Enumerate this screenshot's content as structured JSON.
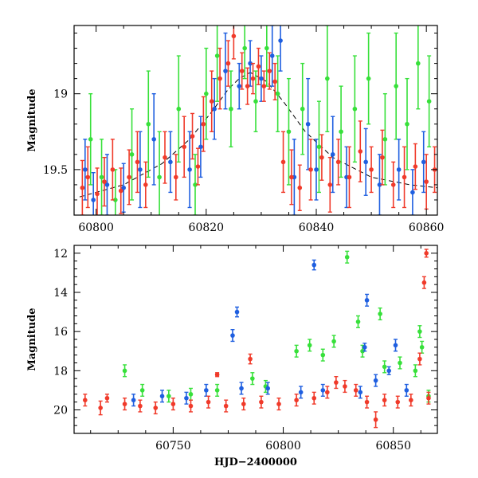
{
  "chart_data": [
    {
      "type": "scatter",
      "title": "",
      "xlabel": "",
      "ylabel": "Magnitude",
      "xlim": [
        60796,
        60862
      ],
      "ylim": [
        19.8,
        18.55
      ],
      "y_inverted": true,
      "xticks": [
        60800,
        60820,
        60840,
        60860
      ],
      "yticks": [
        19,
        19.5
      ],
      "colors": {
        "blue": "#1f5fe0",
        "green": "#37e03a",
        "red": "#f03a2a"
      },
      "model_curve": {
        "style": "dashed",
        "points": [
          {
            "x": 60797,
            "y": 19.68
          },
          {
            "x": 60805,
            "y": 19.6
          },
          {
            "x": 60812,
            "y": 19.46
          },
          {
            "x": 60817,
            "y": 19.3
          },
          {
            "x": 60821,
            "y": 19.12
          },
          {
            "x": 60824,
            "y": 18.97
          },
          {
            "x": 60826,
            "y": 18.9
          },
          {
            "x": 60828,
            "y": 18.86
          },
          {
            "x": 60831,
            "y": 18.92
          },
          {
            "x": 60834,
            "y": 19.05
          },
          {
            "x": 60838,
            "y": 19.25
          },
          {
            "x": 60843,
            "y": 19.42
          },
          {
            "x": 60850,
            "y": 19.55
          },
          {
            "x": 60857,
            "y": 19.6
          },
          {
            "x": 60862,
            "y": 19.62
          }
        ]
      },
      "series": [
        {
          "color": "red",
          "points": [
            {
              "x": 60797.5,
              "y": 19.62,
              "e": 0.18
            },
            {
              "x": 60798.5,
              "y": 19.55,
              "e": 0.2
            },
            {
              "x": 60800.2,
              "y": 19.66,
              "e": 0.17
            },
            {
              "x": 60801.5,
              "y": 19.58,
              "e": 0.16
            },
            {
              "x": 60803,
              "y": 19.5,
              "e": 0.2
            },
            {
              "x": 60804.5,
              "y": 19.64,
              "e": 0.15
            },
            {
              "x": 60806,
              "y": 19.55,
              "e": 0.18
            },
            {
              "x": 60807.5,
              "y": 19.45,
              "e": 0.2
            },
            {
              "x": 60809,
              "y": 19.6,
              "e": 0.15
            },
            {
              "x": 60812.5,
              "y": 19.42,
              "e": 0.17
            },
            {
              "x": 60814.5,
              "y": 19.55,
              "e": 0.15
            },
            {
              "x": 60816,
              "y": 19.35,
              "e": 0.2
            },
            {
              "x": 60817.5,
              "y": 19.28,
              "e": 0.15
            },
            {
              "x": 60818.5,
              "y": 19.48,
              "e": 0.12
            },
            {
              "x": 60819.5,
              "y": 19.2,
              "e": 0.18
            },
            {
              "x": 60821,
              "y": 19.05,
              "e": 0.2
            },
            {
              "x": 60822.5,
              "y": 18.9,
              "e": 0.2
            },
            {
              "x": 60824,
              "y": 18.8,
              "e": 0.15
            },
            {
              "x": 60825,
              "y": 18.62,
              "e": 0.15
            },
            {
              "x": 60826.5,
              "y": 18.85,
              "e": 0.12
            },
            {
              "x": 60827.5,
              "y": 18.95,
              "e": 0.12
            },
            {
              "x": 60828.5,
              "y": 18.9,
              "e": 0.1
            },
            {
              "x": 60829.5,
              "y": 18.82,
              "e": 0.12
            },
            {
              "x": 60830.5,
              "y": 18.95,
              "e": 0.1
            },
            {
              "x": 60831.5,
              "y": 18.85,
              "e": 0.12
            },
            {
              "x": 60832.5,
              "y": 18.92,
              "e": 0.12
            },
            {
              "x": 60834,
              "y": 19.45,
              "e": 0.2
            },
            {
              "x": 60835.5,
              "y": 19.55,
              "e": 0.18
            },
            {
              "x": 60837,
              "y": 19.62,
              "e": 0.15
            },
            {
              "x": 60839,
              "y": 19.5,
              "e": 0.2
            },
            {
              "x": 60841,
              "y": 19.42,
              "e": 0.15
            },
            {
              "x": 60842.5,
              "y": 19.6,
              "e": 0.18
            },
            {
              "x": 60844,
              "y": 19.45,
              "e": 0.15
            },
            {
              "x": 60846,
              "y": 19.55,
              "e": 0.2
            },
            {
              "x": 60848,
              "y": 19.38,
              "e": 0.2
            },
            {
              "x": 60850,
              "y": 19.5,
              "e": 0.15
            },
            {
              "x": 60852,
              "y": 19.42,
              "e": 0.18
            },
            {
              "x": 60854,
              "y": 19.6,
              "e": 0.15
            },
            {
              "x": 60856,
              "y": 19.55,
              "e": 0.2
            },
            {
              "x": 60858,
              "y": 19.48,
              "e": 0.15
            },
            {
              "x": 60860,
              "y": 19.58,
              "e": 0.18
            },
            {
              "x": 60861.5,
              "y": 19.5,
              "e": 0.15
            }
          ]
        },
        {
          "color": "blue",
          "points": [
            {
              "x": 60798,
              "y": 19.5,
              "e": 0.2
            },
            {
              "x": 60799.5,
              "y": 19.7,
              "e": 0.18
            },
            {
              "x": 60802,
              "y": 19.6,
              "e": 0.2
            },
            {
              "x": 60805,
              "y": 19.62,
              "e": 0.16
            },
            {
              "x": 60808,
              "y": 19.5,
              "e": 0.25
            },
            {
              "x": 60810.5,
              "y": 19.3,
              "e": 0.3
            },
            {
              "x": 60813.5,
              "y": 19.45,
              "e": 0.2
            },
            {
              "x": 60817,
              "y": 19.5,
              "e": 0.25
            },
            {
              "x": 60819,
              "y": 19.35,
              "e": 0.2
            },
            {
              "x": 60821.5,
              "y": 19.1,
              "e": 0.2
            },
            {
              "x": 60823.5,
              "y": 18.85,
              "e": 0.25
            },
            {
              "x": 60826,
              "y": 18.95,
              "e": 0.15
            },
            {
              "x": 60828,
              "y": 18.8,
              "e": 0.15
            },
            {
              "x": 60830,
              "y": 18.9,
              "e": 0.15
            },
            {
              "x": 60832,
              "y": 18.75,
              "e": 0.2
            },
            {
              "x": 60833.5,
              "y": 18.65,
              "e": 0.2
            },
            {
              "x": 60836,
              "y": 19.55,
              "e": 0.25
            },
            {
              "x": 60838.5,
              "y": 19.2,
              "e": 0.3
            },
            {
              "x": 60840,
              "y": 19.5,
              "e": 0.2
            },
            {
              "x": 60843,
              "y": 19.4,
              "e": 0.25
            },
            {
              "x": 60845.5,
              "y": 19.55,
              "e": 0.2
            },
            {
              "x": 60849,
              "y": 19.45,
              "e": 0.22
            },
            {
              "x": 60851.5,
              "y": 19.6,
              "e": 0.2
            },
            {
              "x": 60855,
              "y": 19.5,
              "e": 0.2
            },
            {
              "x": 60857.5,
              "y": 19.65,
              "e": 0.15
            },
            {
              "x": 60859.5,
              "y": 19.45,
              "e": 0.2
            }
          ]
        },
        {
          "color": "green",
          "points": [
            {
              "x": 60799,
              "y": 19.3,
              "e": 0.3
            },
            {
              "x": 60801,
              "y": 19.55,
              "e": 0.25
            },
            {
              "x": 60803.5,
              "y": 19.7,
              "e": 0.2
            },
            {
              "x": 60806.5,
              "y": 19.4,
              "e": 0.3
            },
            {
              "x": 60809.5,
              "y": 19.2,
              "e": 0.35
            },
            {
              "x": 60811.5,
              "y": 19.55,
              "e": 0.3
            },
            {
              "x": 60815,
              "y": 19.1,
              "e": 0.35
            },
            {
              "x": 60818,
              "y": 19.6,
              "e": 0.2
            },
            {
              "x": 60820,
              "y": 19.0,
              "e": 0.3
            },
            {
              "x": 60822,
              "y": 18.75,
              "e": 0.3
            },
            {
              "x": 60824.5,
              "y": 19.1,
              "e": 0.25
            },
            {
              "x": 60827,
              "y": 18.7,
              "e": 0.2
            },
            {
              "x": 60829,
              "y": 19.05,
              "e": 0.2
            },
            {
              "x": 60831,
              "y": 18.7,
              "e": 0.25
            },
            {
              "x": 60833,
              "y": 19.0,
              "e": 0.25
            },
            {
              "x": 60835,
              "y": 19.25,
              "e": 0.35
            },
            {
              "x": 60837.5,
              "y": 19.1,
              "e": 0.3
            },
            {
              "x": 60840.5,
              "y": 19.35,
              "e": 0.3
            },
            {
              "x": 60842,
              "y": 18.9,
              "e": 0.35
            },
            {
              "x": 60844.5,
              "y": 19.25,
              "e": 0.3
            },
            {
              "x": 60847,
              "y": 19.1,
              "e": 0.35
            },
            {
              "x": 60849.5,
              "y": 18.9,
              "e": 0.3
            },
            {
              "x": 60852.5,
              "y": 19.3,
              "e": 0.3
            },
            {
              "x": 60854.5,
              "y": 18.95,
              "e": 0.35
            },
            {
              "x": 60856.5,
              "y": 19.2,
              "e": 0.3
            },
            {
              "x": 60858.5,
              "y": 18.8,
              "e": 0.3
            },
            {
              "x": 60860.5,
              "y": 19.05,
              "e": 0.3
            }
          ]
        }
      ]
    },
    {
      "type": "scatter",
      "title": "",
      "xlabel": "HJD−2400000",
      "ylabel": "Magnitude",
      "xlim": [
        60705,
        60870
      ],
      "ylim": [
        21.2,
        11.6
      ],
      "y_inverted": true,
      "xticks": [
        60750,
        60800,
        60850
      ],
      "yticks": [
        12,
        14,
        16,
        18,
        20
      ],
      "colors": {
        "blue": "#1f5fe0",
        "green": "#37e03a",
        "red": "#f03a2a"
      },
      "series": [
        {
          "color": "red",
          "points": [
            {
              "x": 60710,
              "y": 19.5,
              "e": 0.3
            },
            {
              "x": 60717,
              "y": 19.9,
              "e": 0.35
            },
            {
              "x": 60720,
              "y": 19.4,
              "e": 0.2
            },
            {
              "x": 60728,
              "y": 19.7,
              "e": 0.3
            },
            {
              "x": 60735,
              "y": 19.8,
              "e": 0.3
            },
            {
              "x": 60742,
              "y": 19.9,
              "e": 0.3
            },
            {
              "x": 60750,
              "y": 19.7,
              "e": 0.3
            },
            {
              "x": 60758,
              "y": 19.8,
              "e": 0.3
            },
            {
              "x": 60766,
              "y": 19.6,
              "e": 0.3
            },
            {
              "x": 60770,
              "y": 18.2,
              "e": 0.1
            },
            {
              "x": 60774,
              "y": 19.8,
              "e": 0.3
            },
            {
              "x": 60782,
              "y": 19.7,
              "e": 0.3
            },
            {
              "x": 60785,
              "y": 17.4,
              "e": 0.25
            },
            {
              "x": 60790,
              "y": 19.6,
              "e": 0.3
            },
            {
              "x": 60798,
              "y": 19.7,
              "e": 0.3
            },
            {
              "x": 60806,
              "y": 19.5,
              "e": 0.3
            },
            {
              "x": 60814,
              "y": 19.4,
              "e": 0.3
            },
            {
              "x": 60820,
              "y": 19.1,
              "e": 0.3
            },
            {
              "x": 60824,
              "y": 18.6,
              "e": 0.3
            },
            {
              "x": 60828,
              "y": 18.8,
              "e": 0.3
            },
            {
              "x": 60833,
              "y": 19.0,
              "e": 0.3
            },
            {
              "x": 60838,
              "y": 19.6,
              "e": 0.3
            },
            {
              "x": 60842,
              "y": 20.5,
              "e": 0.4
            },
            {
              "x": 60846,
              "y": 19.5,
              "e": 0.3
            },
            {
              "x": 60852,
              "y": 19.6,
              "e": 0.3
            },
            {
              "x": 60858,
              "y": 19.5,
              "e": 0.3
            },
            {
              "x": 60862,
              "y": 17.4,
              "e": 0.3
            },
            {
              "x": 60864,
              "y": 13.5,
              "e": 0.3
            },
            {
              "x": 60865,
              "y": 12.0,
              "e": 0.2
            },
            {
              "x": 60866,
              "y": 19.4,
              "e": 0.3
            }
          ]
        },
        {
          "color": "blue",
          "points": [
            {
              "x": 60732,
              "y": 19.5,
              "e": 0.3
            },
            {
              "x": 60745,
              "y": 19.3,
              "e": 0.3
            },
            {
              "x": 60756,
              "y": 19.4,
              "e": 0.3
            },
            {
              "x": 60765,
              "y": 19.0,
              "e": 0.3
            },
            {
              "x": 60777,
              "y": 16.2,
              "e": 0.3
            },
            {
              "x": 60779,
              "y": 15.0,
              "e": 0.25
            },
            {
              "x": 60781,
              "y": 18.9,
              "e": 0.3
            },
            {
              "x": 60793,
              "y": 18.9,
              "e": 0.3
            },
            {
              "x": 60808,
              "y": 19.1,
              "e": 0.3
            },
            {
              "x": 60814,
              "y": 12.6,
              "e": 0.25
            },
            {
              "x": 60818,
              "y": 19.0,
              "e": 0.3
            },
            {
              "x": 60835,
              "y": 19.1,
              "e": 0.3
            },
            {
              "x": 60837,
              "y": 16.8,
              "e": 0.2
            },
            {
              "x": 60838,
              "y": 14.4,
              "e": 0.3
            },
            {
              "x": 60842,
              "y": 18.5,
              "e": 0.3
            },
            {
              "x": 60848,
              "y": 18.0,
              "e": 0.2
            },
            {
              "x": 60851,
              "y": 16.7,
              "e": 0.3
            },
            {
              "x": 60856,
              "y": 19.0,
              "e": 0.3
            }
          ]
        },
        {
          "color": "green",
          "points": [
            {
              "x": 60728,
              "y": 18.0,
              "e": 0.3
            },
            {
              "x": 60736,
              "y": 19.0,
              "e": 0.3
            },
            {
              "x": 60748,
              "y": 19.3,
              "e": 0.3
            },
            {
              "x": 60758,
              "y": 19.2,
              "e": 0.3
            },
            {
              "x": 60770,
              "y": 19.0,
              "e": 0.3
            },
            {
              "x": 60786,
              "y": 18.4,
              "e": 0.3
            },
            {
              "x": 60792,
              "y": 18.8,
              "e": 0.3
            },
            {
              "x": 60806,
              "y": 17.0,
              "e": 0.3
            },
            {
              "x": 60812,
              "y": 16.7,
              "e": 0.3
            },
            {
              "x": 60818,
              "y": 17.2,
              "e": 0.3
            },
            {
              "x": 60823,
              "y": 16.5,
              "e": 0.3
            },
            {
              "x": 60829,
              "y": 12.2,
              "e": 0.3
            },
            {
              "x": 60834,
              "y": 15.5,
              "e": 0.3
            },
            {
              "x": 60836,
              "y": 17.0,
              "e": 0.3
            },
            {
              "x": 60844,
              "y": 15.1,
              "e": 0.3
            },
            {
              "x": 60846,
              "y": 17.8,
              "e": 0.3
            },
            {
              "x": 60853,
              "y": 17.6,
              "e": 0.3
            },
            {
              "x": 60860,
              "y": 18.0,
              "e": 0.3
            },
            {
              "x": 60862,
              "y": 16.0,
              "e": 0.3
            },
            {
              "x": 60863,
              "y": 16.8,
              "e": 0.3
            },
            {
              "x": 60866,
              "y": 19.3,
              "e": 0.3
            }
          ]
        }
      ]
    }
  ]
}
